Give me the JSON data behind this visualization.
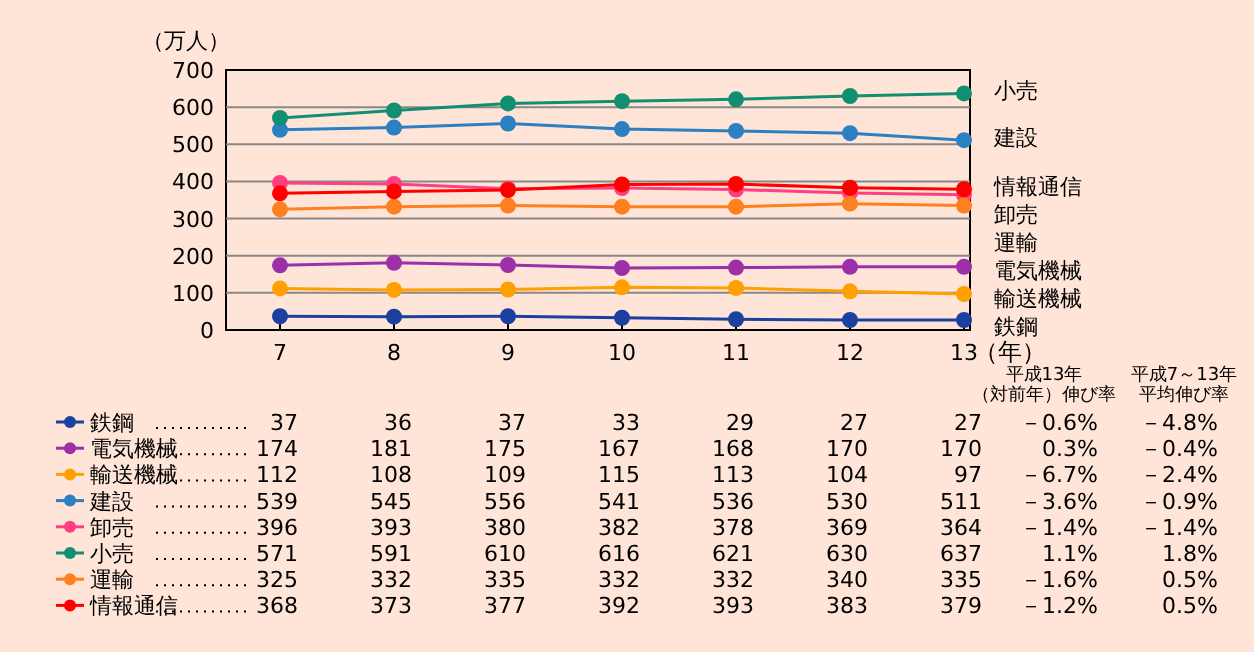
{
  "chart_data": {
    "type": "line",
    "ylabel": "（万人）",
    "xlabel": "（年）",
    "categories": [
      "7",
      "8",
      "9",
      "10",
      "11",
      "12",
      "13"
    ],
    "ylim": [
      0,
      700
    ],
    "yticks": [
      0,
      100,
      200,
      300,
      400,
      500,
      600,
      700
    ],
    "grid": "y",
    "marker": "circle",
    "legend": "bottom",
    "data_labels": true,
    "series": [
      {
        "name": "鉄鋼",
        "color": "#1a40a0",
        "values": [
          37,
          36,
          37,
          33,
          29,
          27,
          27
        ]
      },
      {
        "name": "電気機械",
        "color": "#9b30a8",
        "values": [
          174,
          181,
          175,
          167,
          168,
          170,
          170
        ]
      },
      {
        "name": "輸送機械",
        "color": "#ffa000",
        "values": [
          112,
          108,
          109,
          115,
          113,
          104,
          97
        ]
      },
      {
        "name": "建設",
        "color": "#2a80c0",
        "values": [
          539,
          545,
          556,
          541,
          536,
          530,
          511
        ]
      },
      {
        "name": "卸売",
        "color": "#ff4080",
        "values": [
          396,
          393,
          380,
          382,
          378,
          369,
          364
        ]
      },
      {
        "name": "小売",
        "color": "#109070",
        "values": [
          571,
          591,
          610,
          616,
          621,
          630,
          637
        ]
      },
      {
        "name": "運輸",
        "color": "#ff8020",
        "values": [
          325,
          332,
          335,
          332,
          332,
          340,
          335
        ]
      },
      {
        "name": "情報通信",
        "color": "#ff0000",
        "values": [
          368,
          373,
          377,
          392,
          393,
          383,
          379
        ]
      }
    ],
    "annotations": [
      "平成13年（対前年）伸び率",
      "平成7～13年平均伸び率",
      "－0.6%",
      "－4.8%",
      "0.3%",
      "－0.4%",
      "－6.7%",
      "－2.4%",
      "－3.6%",
      "－0.9%",
      "－1.4%",
      "－1.4%",
      "1.1%",
      "1.8%",
      "－1.6%",
      "0.5%",
      "－1.2%",
      "0.5%"
    ]
  }
}
